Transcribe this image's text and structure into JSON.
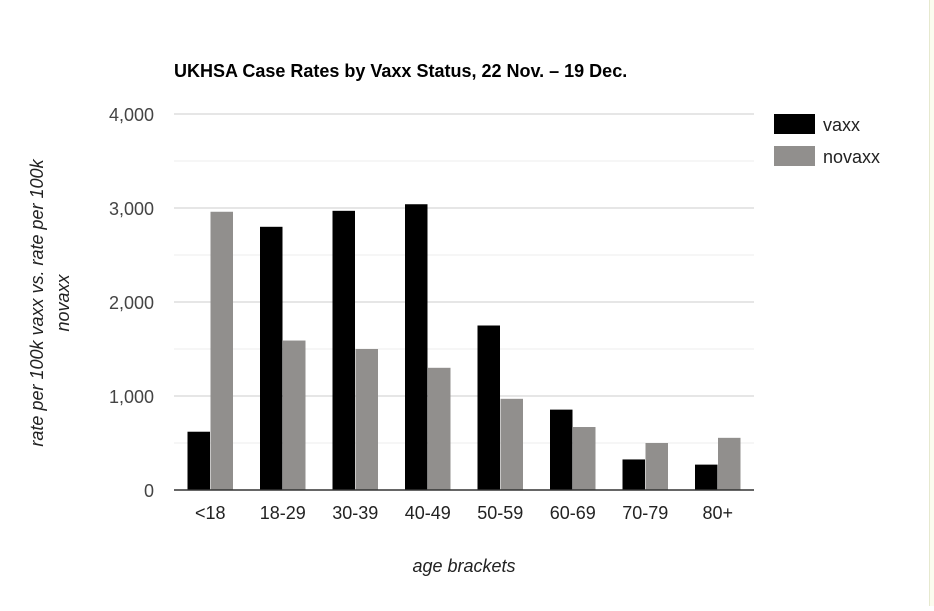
{
  "chart_data": {
    "type": "bar",
    "title": "UKHSA Case Rates by Vaxx Status, 22 Nov. – 19 Dec.",
    "xlabel": "age brackets",
    "ylabel_lines": [
      "rate per 100k vaxx vs. rate per 100k",
      "novaxx"
    ],
    "categories": [
      "<18",
      "18-29",
      "30-39",
      "40-49",
      "50-59",
      "60-69",
      "70-79",
      "80+"
    ],
    "series": [
      {
        "name": "vaxx",
        "color": "#000000",
        "values": [
          620,
          2800,
          2970,
          3040,
          1750,
          855,
          325,
          270
        ]
      },
      {
        "name": "novaxx",
        "color": "#918f8d",
        "values": [
          2960,
          1590,
          1500,
          1300,
          970,
          670,
          500,
          555
        ]
      }
    ],
    "ylim": [
      0,
      4000
    ],
    "yticks": [
      0,
      1000,
      2000,
      3000,
      4000
    ],
    "ytick_labels": [
      "0",
      "1,000",
      "2,000",
      "3,000",
      "4,000"
    ],
    "grid": true,
    "legend_position": "right"
  }
}
